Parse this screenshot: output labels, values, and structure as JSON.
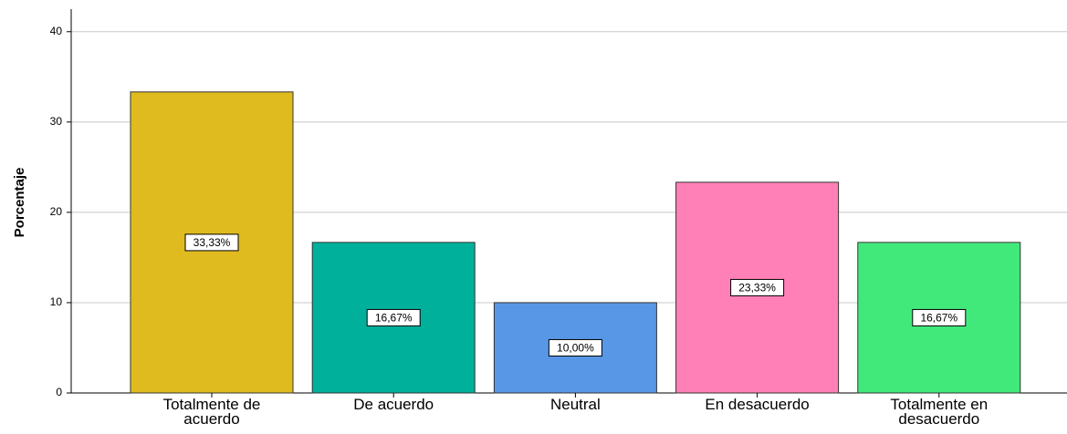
{
  "chart_data": {
    "type": "bar",
    "y_label": "Porcentaje",
    "categories": [
      "Totalmente de acuerdo",
      "De acuerdo",
      "Neutral",
      "En desacuerdo",
      "Totalmente en desacuerdo"
    ],
    "values": [
      33.33,
      16.67,
      10.0,
      23.33,
      16.67
    ],
    "value_labels": [
      "33,33%",
      "16,67%",
      "10,00%",
      "23,33%",
      "16,67%"
    ],
    "colors": [
      "#e0bb1f",
      "#00b09b",
      "#5897e5",
      "#ff80b7",
      "#41e97b"
    ],
    "ylim": [
      0,
      42.5
    ],
    "yticks": [
      0,
      10,
      20,
      30,
      40
    ],
    "grid": true
  }
}
